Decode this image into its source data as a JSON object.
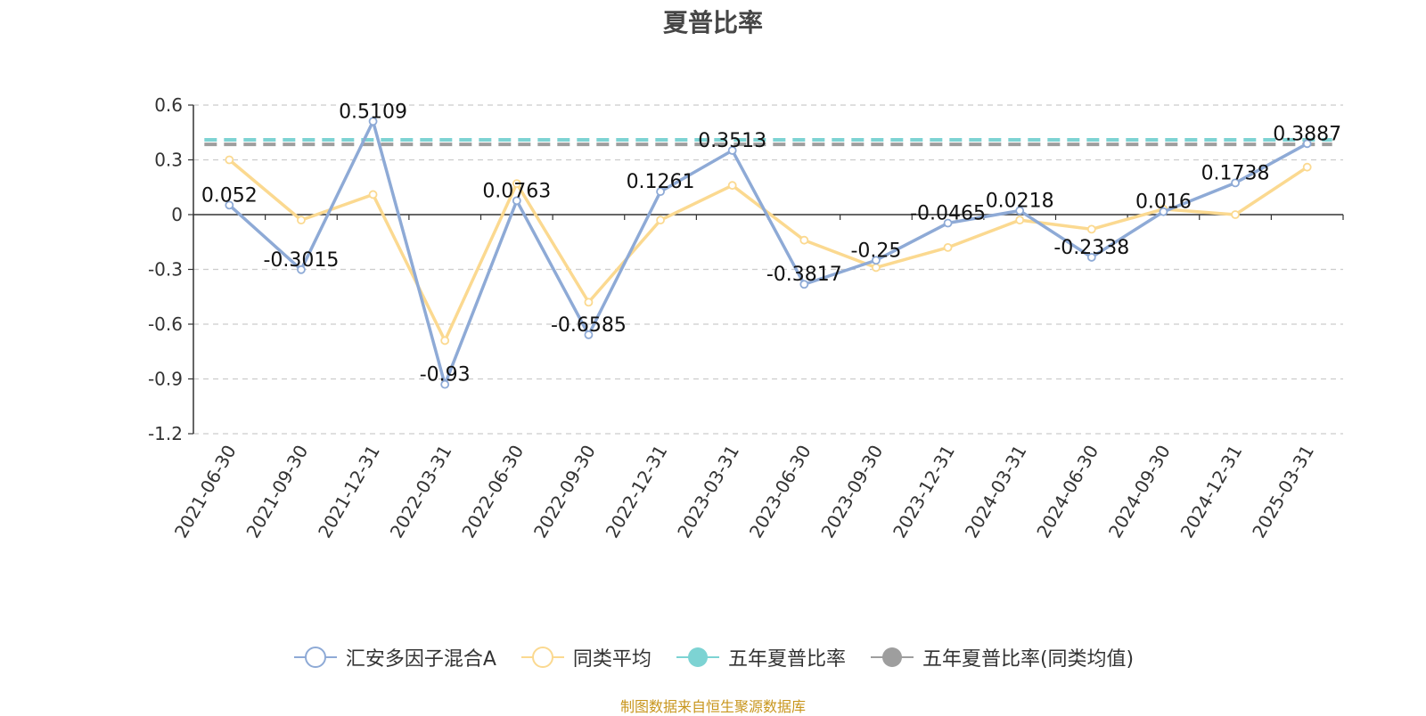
{
  "chart_data": {
    "type": "line",
    "title": "夏普比率",
    "categories": [
      "2021-06-30",
      "2021-09-30",
      "2021-12-31",
      "2022-03-31",
      "2022-06-30",
      "2022-09-30",
      "2022-12-31",
      "2023-03-31",
      "2023-06-30",
      "2023-09-30",
      "2023-12-31",
      "2024-03-31",
      "2024-06-30",
      "2024-09-30",
      "2024-12-31",
      "2025-03-31"
    ],
    "ylim": [
      -1.2,
      0.6
    ],
    "yticks": [
      0.6,
      0.3,
      0,
      -0.3,
      -0.6,
      -0.9,
      -1.2
    ],
    "ytick_labels": [
      "0.6",
      "0.3",
      "0",
      "-0.3",
      "-0.6",
      "-0.9",
      "-1.2"
    ],
    "grid": true,
    "legend_position": "bottom",
    "series": [
      {
        "name": "汇安多因子混合A",
        "color": "#8eaad6",
        "values": [
          0.052,
          -0.3015,
          0.5109,
          -0.93,
          0.0763,
          -0.6585,
          0.1261,
          0.3513,
          -0.3817,
          -0.25,
          -0.0465,
          0.0218,
          -0.2338,
          0.016,
          0.1738,
          0.3887
        ],
        "labels": [
          "0.052",
          "-0.3015",
          "0.5109",
          "-0.93",
          "0.0763",
          "-0.6585",
          "0.1261",
          "0.3513",
          "-0.3817",
          "-0.25",
          "-0.0465",
          "0.0218",
          "-0.2338",
          "0.016",
          "0.1738",
          "0.3887"
        ]
      },
      {
        "name": "同类平均",
        "color": "#fbd990",
        "values": [
          0.3,
          -0.03,
          0.11,
          -0.69,
          0.17,
          -0.48,
          -0.03,
          0.16,
          -0.14,
          -0.29,
          -0.18,
          -0.03,
          -0.08,
          0.03,
          0.0,
          0.26
        ]
      },
      {
        "name": "五年夏普比率",
        "color": "#7dd3d3",
        "constant": 0.41
      },
      {
        "name": "五年夏普比率(同类均值)",
        "color": "#9e9e9e",
        "constant": 0.385
      }
    ]
  },
  "source_note": "制图数据来自恒生聚源数据库"
}
